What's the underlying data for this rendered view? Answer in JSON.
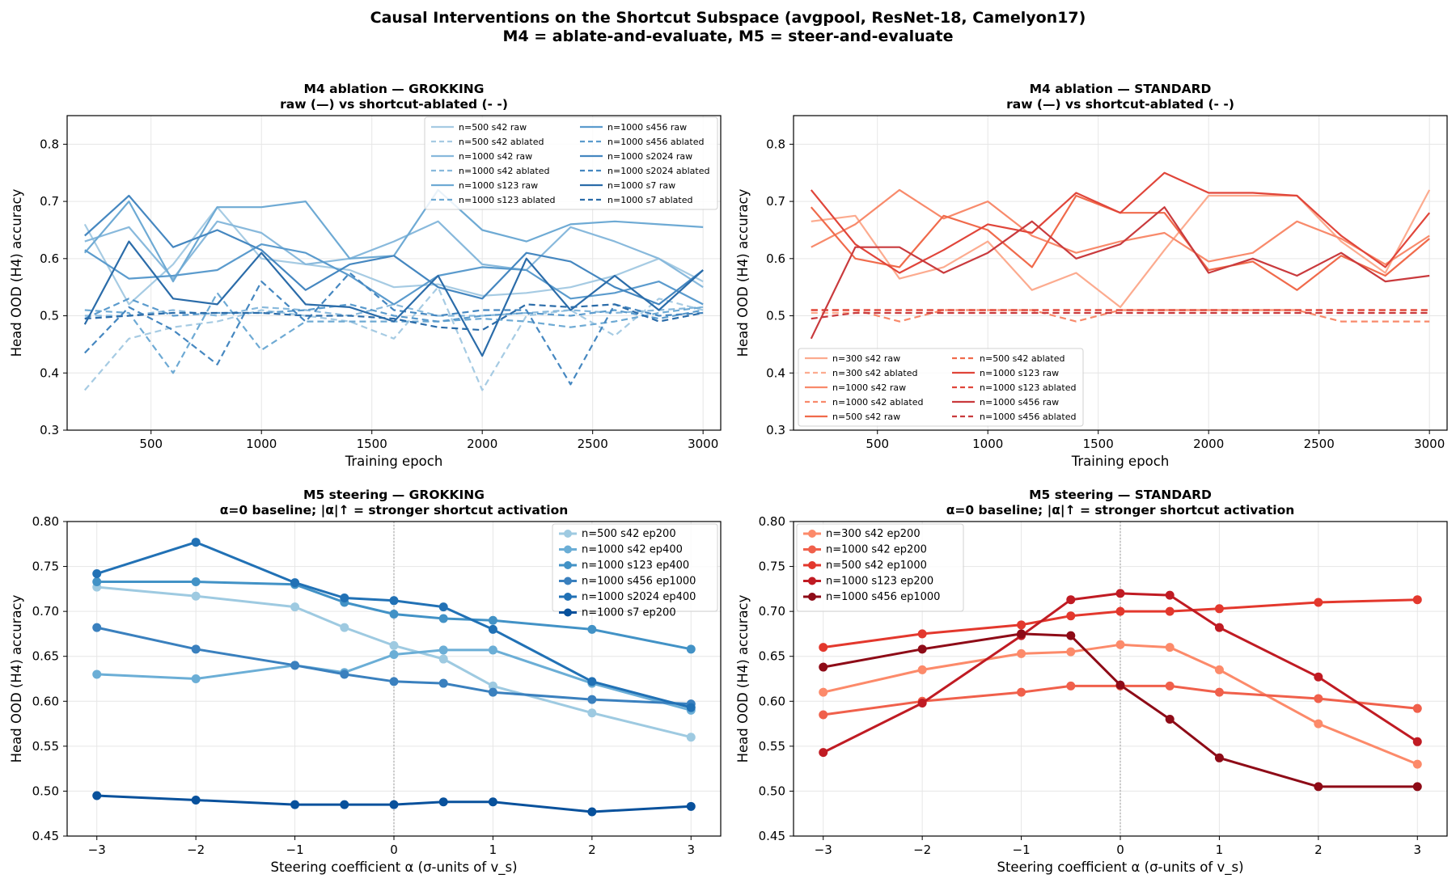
{
  "figure": {
    "title_line1": "Causal Interventions on the Shortcut Subspace (avgpool, ResNet-18, Camelyon17)",
    "title_line2": "M4 = ablate-and-evaluate, M5 = steer-and-evaluate"
  },
  "chart_data": [
    {
      "id": "m4-grokking",
      "type": "line",
      "title": "M4 ablation — GROKKING",
      "subtitle": "raw (—) vs shortcut-ablated (- -)",
      "xlabel": "Training epoch",
      "ylabel": "Head OOD (H4) accuracy",
      "xlim": [
        120,
        3080
      ],
      "ylim": [
        0.3,
        0.85
      ],
      "xticks": [
        500,
        1000,
        1500,
        2000,
        2500,
        3000
      ],
      "yticks": [
        0.3,
        0.4,
        0.5,
        0.6,
        0.7,
        0.8
      ],
      "grid": true,
      "legend_position": "top-right",
      "legend_columns": 2,
      "x": [
        200,
        400,
        600,
        800,
        1000,
        1200,
        1400,
        1600,
        1800,
        2000,
        2200,
        2400,
        2600,
        2800,
        3000
      ],
      "series": [
        {
          "name": "n=500 s42 raw",
          "style": "solid",
          "color": "#a6cbe3",
          "values": [
            0.66,
            0.52,
            0.59,
            0.69,
            0.6,
            0.59,
            0.58,
            0.55,
            0.555,
            0.535,
            0.54,
            0.55,
            0.57,
            0.6,
            0.56
          ]
        },
        {
          "name": "n=500 s42 ablated",
          "style": "dashed",
          "color": "#a6cbe3",
          "values": [
            0.37,
            0.46,
            0.48,
            0.49,
            0.51,
            0.5,
            0.49,
            0.46,
            0.55,
            0.37,
            0.5,
            0.51,
            0.465,
            0.53,
            0.51
          ]
        },
        {
          "name": "n=1000 s42 raw",
          "style": "solid",
          "color": "#88b9dc",
          "values": [
            0.63,
            0.655,
            0.565,
            0.665,
            0.645,
            0.59,
            0.6,
            0.63,
            0.665,
            0.59,
            0.58,
            0.655,
            0.63,
            0.6,
            0.55
          ]
        },
        {
          "name": "n=1000 s42 ablated",
          "style": "dashed",
          "color": "#88b9dc",
          "values": [
            0.5,
            0.5,
            0.51,
            0.5,
            0.515,
            0.51,
            0.5,
            0.52,
            0.5,
            0.5,
            0.505,
            0.51,
            0.505,
            0.51,
            0.515
          ]
        },
        {
          "name": "n=1000 s123 raw",
          "style": "solid",
          "color": "#6eaad4",
          "values": [
            0.61,
            0.7,
            0.56,
            0.69,
            0.69,
            0.7,
            0.6,
            0.605,
            0.72,
            0.65,
            0.63,
            0.66,
            0.665,
            0.66,
            0.655
          ]
        },
        {
          "name": "n=1000 s123 ablated",
          "style": "dashed",
          "color": "#6eaad4",
          "values": [
            0.51,
            0.505,
            0.4,
            0.54,
            0.44,
            0.49,
            0.49,
            0.49,
            0.49,
            0.495,
            0.49,
            0.48,
            0.49,
            0.505,
            0.515
          ]
        },
        {
          "name": "n=1000 s456 raw",
          "style": "solid",
          "color": "#5b9bcd",
          "values": [
            0.615,
            0.565,
            0.57,
            0.58,
            0.625,
            0.61,
            0.57,
            0.52,
            0.57,
            0.585,
            0.58,
            0.53,
            0.54,
            0.56,
            0.52
          ]
        },
        {
          "name": "n=1000 s456 ablated",
          "style": "dashed",
          "color": "#5b9bcd",
          "values": [
            0.495,
            0.53,
            0.5,
            0.505,
            0.505,
            0.51,
            0.52,
            0.5,
            0.49,
            0.5,
            0.505,
            0.5,
            0.51,
            0.495,
            0.51
          ]
        },
        {
          "name": "n=1000 s2024 raw",
          "style": "solid",
          "color": "#4587c0",
          "values": [
            0.64,
            0.71,
            0.62,
            0.65,
            0.615,
            0.545,
            0.59,
            0.605,
            0.55,
            0.53,
            0.61,
            0.595,
            0.55,
            0.52,
            0.58
          ]
        },
        {
          "name": "n=1000 s2024 ablated",
          "style": "dashed",
          "color": "#4587c0",
          "values": [
            0.435,
            0.515,
            0.475,
            0.415,
            0.56,
            0.49,
            0.575,
            0.51,
            0.5,
            0.51,
            0.51,
            0.38,
            0.52,
            0.5,
            0.505
          ]
        },
        {
          "name": "n=1000 s7 raw",
          "style": "solid",
          "color": "#2b6ca9",
          "values": [
            0.485,
            0.63,
            0.53,
            0.52,
            0.61,
            0.52,
            0.515,
            0.49,
            0.57,
            0.43,
            0.6,
            0.51,
            0.57,
            0.51,
            0.58
          ]
        },
        {
          "name": "n=1000 s7 ablated",
          "style": "dashed",
          "color": "#2b6ca9",
          "values": [
            0.495,
            0.5,
            0.505,
            0.505,
            0.505,
            0.5,
            0.5,
            0.495,
            0.48,
            0.475,
            0.52,
            0.515,
            0.52,
            0.49,
            0.505
          ]
        }
      ]
    },
    {
      "id": "m4-standard",
      "type": "line",
      "title": "M4 ablation — STANDARD",
      "subtitle": "raw (—) vs shortcut-ablated (- -)",
      "xlabel": "Training epoch",
      "ylabel": "Head OOD (H4) accuracy",
      "xlim": [
        120,
        3080
      ],
      "ylim": [
        0.3,
        0.85
      ],
      "xticks": [
        500,
        1000,
        1500,
        2000,
        2500,
        3000
      ],
      "yticks": [
        0.3,
        0.4,
        0.5,
        0.6,
        0.7,
        0.8
      ],
      "grid": true,
      "legend_position": "bottom-left",
      "legend_columns": 2,
      "x": [
        200,
        400,
        600,
        800,
        1000,
        1200,
        1400,
        1600,
        1800,
        2000,
        2200,
        2400,
        2600,
        2800,
        3000
      ],
      "series": [
        {
          "name": "n=300 s42 raw",
          "style": "solid",
          "color": "#fcab8f",
          "values": [
            0.665,
            0.675,
            0.565,
            0.585,
            0.63,
            0.545,
            0.575,
            0.515,
            0.615,
            0.71,
            0.71,
            0.71,
            0.63,
            0.575,
            0.72
          ]
        },
        {
          "name": "n=300 s42 ablated",
          "style": "dashed",
          "color": "#fcab8f",
          "values": [
            0.505,
            0.505,
            0.505,
            0.505,
            0.505,
            0.505,
            0.505,
            0.505,
            0.505,
            0.505,
            0.505,
            0.505,
            0.505,
            0.505,
            0.505
          ]
        },
        {
          "name": "n=1000 s42 raw",
          "style": "solid",
          "color": "#f88a6b",
          "values": [
            0.62,
            0.66,
            0.72,
            0.67,
            0.7,
            0.64,
            0.61,
            0.63,
            0.645,
            0.595,
            0.61,
            0.665,
            0.635,
            0.59,
            0.64
          ]
        },
        {
          "name": "n=1000 s42 ablated",
          "style": "dashed",
          "color": "#f88a6b",
          "values": [
            0.51,
            0.51,
            0.49,
            0.51,
            0.51,
            0.51,
            0.49,
            0.51,
            0.51,
            0.51,
            0.51,
            0.51,
            0.49,
            0.49,
            0.49
          ]
        },
        {
          "name": "n=500 s42 raw",
          "style": "solid",
          "color": "#f06a4b",
          "values": [
            0.69,
            0.6,
            0.585,
            0.675,
            0.65,
            0.585,
            0.71,
            0.68,
            0.68,
            0.58,
            0.595,
            0.545,
            0.605,
            0.57,
            0.635
          ]
        },
        {
          "name": "n=500 s42 ablated",
          "style": "dashed",
          "color": "#f06a4b",
          "values": [
            0.51,
            0.51,
            0.51,
            0.51,
            0.51,
            0.51,
            0.51,
            0.51,
            0.51,
            0.51,
            0.51,
            0.51,
            0.51,
            0.51,
            0.51
          ]
        },
        {
          "name": "n=1000 s123 raw",
          "style": "solid",
          "color": "#e0453a",
          "values": [
            0.72,
            0.625,
            0.575,
            0.615,
            0.66,
            0.645,
            0.715,
            0.68,
            0.75,
            0.715,
            0.715,
            0.71,
            0.64,
            0.585,
            0.68
          ]
        },
        {
          "name": "n=1000 s123 ablated",
          "style": "dashed",
          "color": "#e0453a",
          "values": [
            0.51,
            0.51,
            0.51,
            0.51,
            0.51,
            0.51,
            0.51,
            0.51,
            0.51,
            0.51,
            0.51,
            0.51,
            0.51,
            0.51,
            0.51
          ]
        },
        {
          "name": "n=1000 s456 raw",
          "style": "solid",
          "color": "#c93a3d",
          "values": [
            0.46,
            0.62,
            0.62,
            0.575,
            0.61,
            0.665,
            0.6,
            0.625,
            0.69,
            0.575,
            0.6,
            0.57,
            0.61,
            0.56,
            0.57
          ]
        },
        {
          "name": "n=1000 s456 ablated",
          "style": "dashed",
          "color": "#c93a3d",
          "values": [
            0.495,
            0.505,
            0.505,
            0.505,
            0.505,
            0.505,
            0.505,
            0.505,
            0.505,
            0.505,
            0.505,
            0.505,
            0.505,
            0.505,
            0.505
          ]
        }
      ]
    },
    {
      "id": "m5-grokking",
      "type": "line",
      "title": "M5 steering — GROKKING",
      "subtitle": "α=0 baseline; |α|↑ = stronger shortcut activation",
      "xlabel": "Steering coefficient α (σ-units of v_s)",
      "ylabel": "Head OOD (H4) accuracy",
      "xlim": [
        -3.3,
        3.3
      ],
      "ylim": [
        0.45,
        0.8
      ],
      "xticks": [
        -3,
        -2,
        -1,
        0,
        1,
        2,
        3
      ],
      "xticklabels": [
        "−3",
        "−2",
        "−1",
        "0",
        "1",
        "2",
        "3"
      ],
      "yticks": [
        0.45,
        0.5,
        0.55,
        0.6,
        0.65,
        0.7,
        0.75,
        0.8
      ],
      "grid": true,
      "reference_line_x": 0,
      "legend_position": "top-right",
      "markers": true,
      "x": [
        -3,
        -2,
        -1,
        -0.5,
        0,
        0.5,
        1,
        2,
        3
      ],
      "series": [
        {
          "name": "n=500 s42  ep200",
          "color": "#9ecae1",
          "values": [
            0.727,
            0.717,
            0.705,
            0.682,
            0.662,
            0.647,
            0.617,
            0.587,
            0.56
          ]
        },
        {
          "name": "n=1000 s42  ep400",
          "color": "#6baed6",
          "values": [
            0.63,
            0.625,
            0.64,
            0.632,
            0.652,
            0.657,
            0.657,
            0.62,
            0.59
          ]
        },
        {
          "name": "n=1000 s123  ep400",
          "color": "#4292c6",
          "values": [
            0.733,
            0.733,
            0.73,
            0.71,
            0.697,
            0.692,
            0.69,
            0.68,
            0.658
          ]
        },
        {
          "name": "n=1000 s456  ep1000",
          "color": "#3a80be",
          "values": [
            0.682,
            0.658,
            0.64,
            0.63,
            0.622,
            0.62,
            0.61,
            0.602,
            0.597
          ]
        },
        {
          "name": "n=1000 s2024  ep400",
          "color": "#2171b5",
          "values": [
            0.742,
            0.777,
            0.732,
            0.715,
            0.712,
            0.705,
            0.68,
            0.622,
            0.593
          ]
        },
        {
          "name": "n=1000 s7  ep200",
          "color": "#08519c",
          "values": [
            0.495,
            0.49,
            0.485,
            0.485,
            0.485,
            0.488,
            0.488,
            0.477,
            0.483
          ]
        }
      ]
    },
    {
      "id": "m5-standard",
      "type": "line",
      "title": "M5 steering — STANDARD",
      "subtitle": "α=0 baseline; |α|↑ = stronger shortcut activation",
      "xlabel": "Steering coefficient α (σ-units of v_s)",
      "ylabel": "Head OOD (H4) accuracy",
      "xlim": [
        -3.3,
        3.3
      ],
      "ylim": [
        0.45,
        0.8
      ],
      "xticks": [
        -3,
        -2,
        -1,
        0,
        1,
        2,
        3
      ],
      "xticklabels": [
        "−3",
        "−2",
        "−1",
        "0",
        "1",
        "2",
        "3"
      ],
      "yticks": [
        0.45,
        0.5,
        0.55,
        0.6,
        0.65,
        0.7,
        0.75,
        0.8
      ],
      "grid": true,
      "reference_line_x": 0,
      "legend_position": "top-left",
      "markers": true,
      "x": [
        -3,
        -2,
        -1,
        -0.5,
        0,
        0.5,
        1,
        2,
        3
      ],
      "series": [
        {
          "name": "n=300 s42  ep200",
          "color": "#fc8a6a",
          "values": [
            0.61,
            0.635,
            0.653,
            0.655,
            0.663,
            0.66,
            0.635,
            0.575,
            0.53
          ]
        },
        {
          "name": "n=1000 s42  ep200",
          "color": "#f0604b",
          "values": [
            0.585,
            0.6,
            0.61,
            0.617,
            0.617,
            0.617,
            0.61,
            0.603,
            0.592
          ]
        },
        {
          "name": "n=500 s42  ep1000",
          "color": "#e3382d",
          "values": [
            0.66,
            0.675,
            0.685,
            0.695,
            0.7,
            0.7,
            0.703,
            0.71,
            0.713
          ]
        },
        {
          "name": "n=1000 s123  ep200",
          "color": "#c01b23",
          "values": [
            0.543,
            0.598,
            0.673,
            0.713,
            0.72,
            0.718,
            0.682,
            0.627,
            0.555
          ]
        },
        {
          "name": "n=1000 s456  ep1000",
          "color": "#8e0b17",
          "values": [
            0.638,
            0.658,
            0.675,
            0.673,
            0.618,
            0.58,
            0.537,
            0.505,
            0.505
          ]
        }
      ]
    }
  ]
}
